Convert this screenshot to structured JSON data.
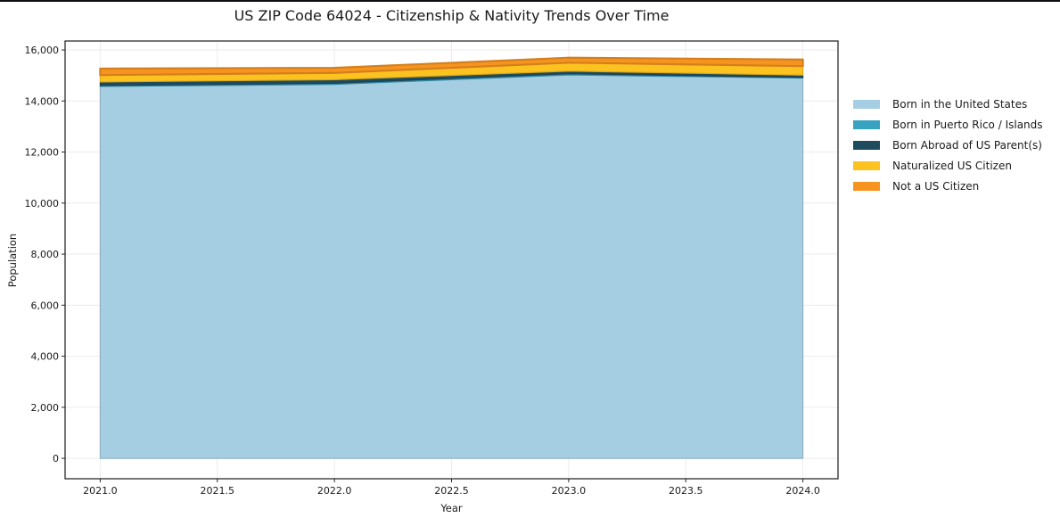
{
  "title": "US ZIP Code 64024 - Citizenship & Nativity Trends Over Time",
  "colors": {
    "background": "#ffffff",
    "top_edge": "#0c0c14",
    "frame": "#1a1a1a",
    "grid": "#ececec",
    "tick": "#262626",
    "text": "#1a1a1a"
  },
  "chart_data": {
    "type": "area",
    "stacked": true,
    "title": "US ZIP Code 64024 - Citizenship & Nativity Trends Over Time",
    "xlabel": "Year",
    "ylabel": "Population",
    "x": [
      2021,
      2022,
      2023,
      2024
    ],
    "series": [
      {
        "name": "Born in the United States",
        "color": "#A6CEE3",
        "values": [
          14570,
          14650,
          15020,
          14900
        ]
      },
      {
        "name": "Born in Puerto Rico / Islands",
        "color": "#38A3C1",
        "values": [
          35,
          45,
          50,
          25
        ]
      },
      {
        "name": "Born Abroad of US Parent(s)",
        "color": "#1F4B5F",
        "values": [
          140,
          140,
          100,
          90
        ]
      },
      {
        "name": "Naturalized US Citizen",
        "color": "#FCC320",
        "values": [
          270,
          265,
          330,
          350
        ]
      },
      {
        "name": "Not a US Citizen",
        "color": "#F79420",
        "values": [
          255,
          200,
          195,
          260
        ]
      }
    ],
    "stack_totals": [
      15270,
      15300,
      15695,
      15625
    ],
    "xlim": [
      2020.85,
      2024.15
    ],
    "ylim": [
      -800,
      16350
    ],
    "x_ticks": [
      2021.0,
      2021.5,
      2022.0,
      2022.5,
      2023.0,
      2023.5,
      2024.0
    ],
    "x_tick_labels": [
      "2021.0",
      "2021.5",
      "2022.0",
      "2022.5",
      "2023.0",
      "2023.5",
      "2024.0"
    ],
    "y_ticks": [
      0,
      2000,
      4000,
      6000,
      8000,
      10000,
      12000,
      14000,
      16000
    ],
    "y_tick_labels": [
      "0",
      "2,000",
      "4,000",
      "6,000",
      "8,000",
      "10,000",
      "12,000",
      "14,000",
      "16,000"
    ],
    "grid": true,
    "legend_position": "outside-right",
    "legend": [
      "Born in the United States",
      "Born in Puerto Rico / Islands",
      "Born Abroad of US Parent(s)",
      "Naturalized US Citizen",
      "Not a US Citizen"
    ]
  }
}
